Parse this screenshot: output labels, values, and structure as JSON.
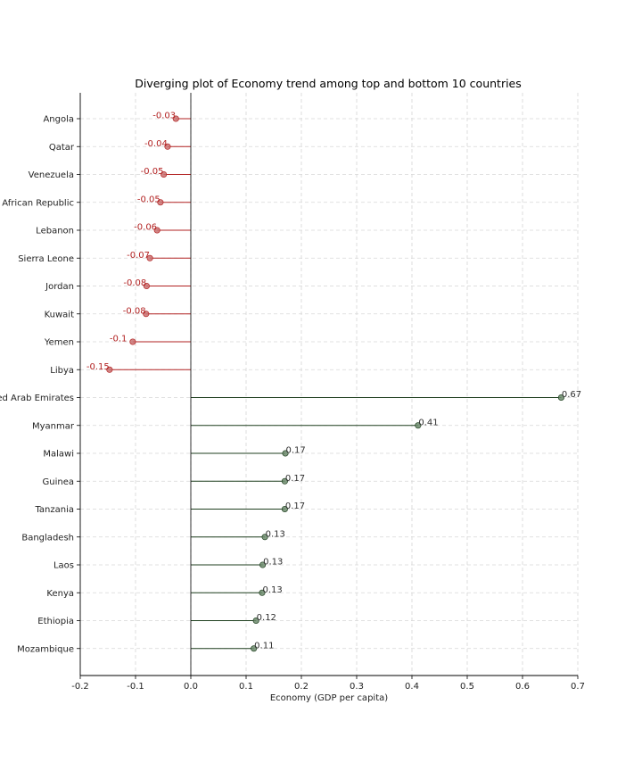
{
  "chart_data": {
    "type": "lollipop",
    "orientation": "horizontal",
    "title": "Diverging plot of Economy trend among top and bottom 10 countries",
    "xlabel": "Economy (GDP per capita)",
    "ylabel": "",
    "xlim": [
      -0.2,
      0.7
    ],
    "xticks": [
      "-0.2",
      "-0.1",
      "0.0",
      "0.1",
      "0.2",
      "0.3",
      "0.4",
      "0.5",
      "0.6",
      "0.7"
    ],
    "grid": true,
    "colors": {
      "negative": "#b22222",
      "positive": "#1f3f1f",
      "marker_negative": "#c97070",
      "marker_positive": "#6b8a6b"
    },
    "categories": [
      "Angola",
      "Qatar",
      "Venezuela",
      "Central African Republic",
      "Lebanon",
      "Sierra Leone",
      "Jordan",
      "Kuwait",
      "Yemen",
      "Libya",
      "United Arab Emirates",
      "Myanmar",
      "Malawi",
      "Guinea",
      "Tanzania",
      "Bangladesh",
      "Laos",
      "Kenya",
      "Ethiopia",
      "Mozambique"
    ],
    "values": [
      -0.027,
      -0.042,
      -0.049,
      -0.055,
      -0.061,
      -0.074,
      -0.08,
      -0.081,
      -0.105,
      -0.147,
      0.67,
      0.411,
      0.171,
      0.17,
      0.17,
      0.134,
      0.13,
      0.129,
      0.118,
      0.114
    ],
    "labels": [
      "-0.03",
      "-0.04",
      "-0.05",
      "-0.05",
      "-0.06",
      "-0.07",
      "-0.08",
      "-0.08",
      "-0.1",
      "-0.15",
      "0.67",
      "0.41",
      "0.17",
      "0.17",
      "0.17",
      "0.13",
      "0.13",
      "0.13",
      "0.12",
      "0.11"
    ]
  }
}
